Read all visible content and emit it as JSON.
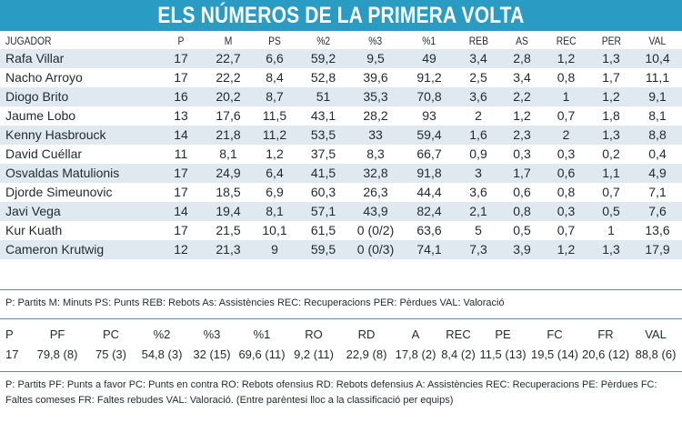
{
  "title": "ELS NÚMEROS DE LA PRIMERA VOLTA",
  "players": {
    "headers": [
      "JUGADOR",
      "P",
      "M",
      "PS",
      "%2",
      "%3",
      "%1",
      "REB",
      "AS",
      "REC",
      "PER",
      "VAL"
    ],
    "rows": [
      [
        "Rafa Villar",
        "17",
        "22,7",
        "6,6",
        "59,2",
        "9,5",
        "49",
        "3,4",
        "2,8",
        "1,2",
        "1,3",
        "10,4"
      ],
      [
        "Nacho Arroyo",
        "17",
        "22,2",
        "8,4",
        "52,8",
        "39,6",
        "91,2",
        "2,5",
        "3,4",
        "0,8",
        "1,7",
        "11,1"
      ],
      [
        "Diogo Brito",
        "16",
        "20,2",
        "8,7",
        "51",
        "35,3",
        "70,8",
        "3,6",
        "2,2",
        "1",
        "1,2",
        "9,1"
      ],
      [
        "Jaume Lobo",
        "13",
        "17,6",
        "11,5",
        "43,1",
        "28,2",
        "93",
        "2",
        "1,2",
        "0,7",
        "1,8",
        "8,1"
      ],
      [
        "Kenny Hasbrouck",
        "14",
        "21,8",
        "11,2",
        "53,5",
        "33",
        "59,4",
        "1,6",
        "2,3",
        "2",
        "1,3",
        "8,8"
      ],
      [
        "David Cuéllar",
        "11",
        "8,1",
        "1,2",
        "37,5",
        "8,3",
        "66,7",
        "0,9",
        "0,3",
        "0,3",
        "0,2",
        "0,4"
      ],
      [
        "Osvaldas Matulionis",
        "17",
        "24,9",
        "6,4",
        "41,5",
        "32,8",
        "91,8",
        "3",
        "1,7",
        "0,6",
        "1,1",
        "4,9"
      ],
      [
        "Djorde Simeunovic",
        "17",
        "18,5",
        "6,9",
        "60,3",
        "26,3",
        "44,4",
        "3,6",
        "0,6",
        "0,8",
        "0,7",
        "7,1"
      ],
      [
        "Javi Vega",
        "14",
        "19,4",
        "8,1",
        "57,1",
        "43,9",
        "82,4",
        "2,1",
        "0,8",
        "0,3",
        "0,5",
        "7,6"
      ],
      [
        "Kur Kuath",
        "17",
        "21,5",
        "10,1",
        "61,5",
        "0 (0/2)",
        "63,6",
        "5",
        "0,5",
        "0,7",
        "1",
        "13,6"
      ],
      [
        "Cameron Krutwig",
        "12",
        "21,3",
        "9",
        "59,5",
        "0 (0/3)",
        "74,1",
        "7,3",
        "3,9",
        "1,2",
        "1,3",
        "17,9"
      ]
    ],
    "legend": "P: Partits M: Minuts PS: Punts REB: Rebots As: Assistències REC: Recuperacions PER: Pèrdues VAL: Valoració"
  },
  "team": {
    "headers": [
      "P",
      "PF",
      "PC",
      "%2",
      "%3",
      "%1",
      "RO",
      "RD",
      "A",
      "REC",
      "PE",
      "FC",
      "FR",
      "VAL"
    ],
    "values": [
      "17",
      "79,8 (8)",
      "75 (3)",
      "54,8 (3)",
      "32 (15)",
      "69,6 (11)",
      "9,2 (11)",
      "22,9 (8)",
      "17,8 (2)",
      "8,4 (2)",
      "11,5 (13)",
      "19,5 (14)",
      "20,6 (12)",
      "88,8 (6)"
    ],
    "legend": "P: Partits PF: Punts a favor PC: Punts en contra RO: Rebots ofensius RD: Rebots defensius A: Assistències REC: Recuperacions PE: Pèrdues FC: Faltes comeses FR: Faltes rebudes VAL: Valoració. (Entre parèntesi lloc a la classificació per equips)"
  },
  "colors": {
    "banner": "#2a9bc2",
    "shade": "#dfe9ef",
    "rule": "#5f8fa3"
  }
}
